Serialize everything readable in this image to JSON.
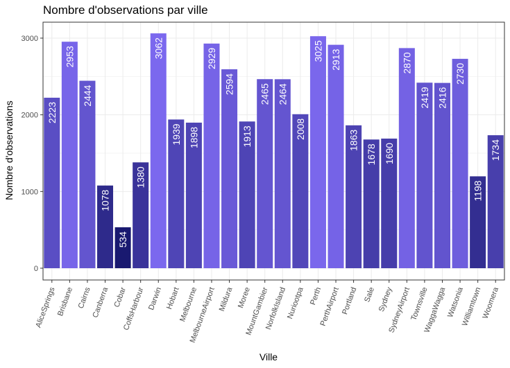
{
  "chart_data": {
    "type": "bar",
    "title": "Nombre d'observations par ville",
    "xlabel": "Ville",
    "ylabel": "Nombre d'observations",
    "ylim": [
      0,
      3200
    ],
    "yticks": [
      0,
      1000,
      2000,
      3000
    ],
    "grid": true,
    "legend": "none",
    "color_scale": {
      "low": "#191970",
      "high": "#7b68ee"
    },
    "categories": [
      "AliceSprings",
      "Brisbane",
      "Cairns",
      "Canberra",
      "Cobar",
      "CoffsHarbour",
      "Darwin",
      "Hobart",
      "Melbourne",
      "MelbourneAirport",
      "Mildura",
      "Moree",
      "MountGambier",
      "NorfolkIsland",
      "Nuriootpa",
      "Perth",
      "PerthAirport",
      "Portland",
      "Sale",
      "Sydney",
      "SydneyAirport",
      "Townsville",
      "WaggaWagga",
      "Watsonia",
      "Williamtown",
      "Woomera"
    ],
    "values": [
      2223,
      2953,
      2444,
      1078,
      534,
      1380,
      3062,
      1939,
      1898,
      2929,
      2594,
      1913,
      2465,
      2464,
      2008,
      3025,
      2913,
      1863,
      1678,
      1690,
      2870,
      2419,
      2416,
      2730,
      1198,
      1734
    ]
  }
}
